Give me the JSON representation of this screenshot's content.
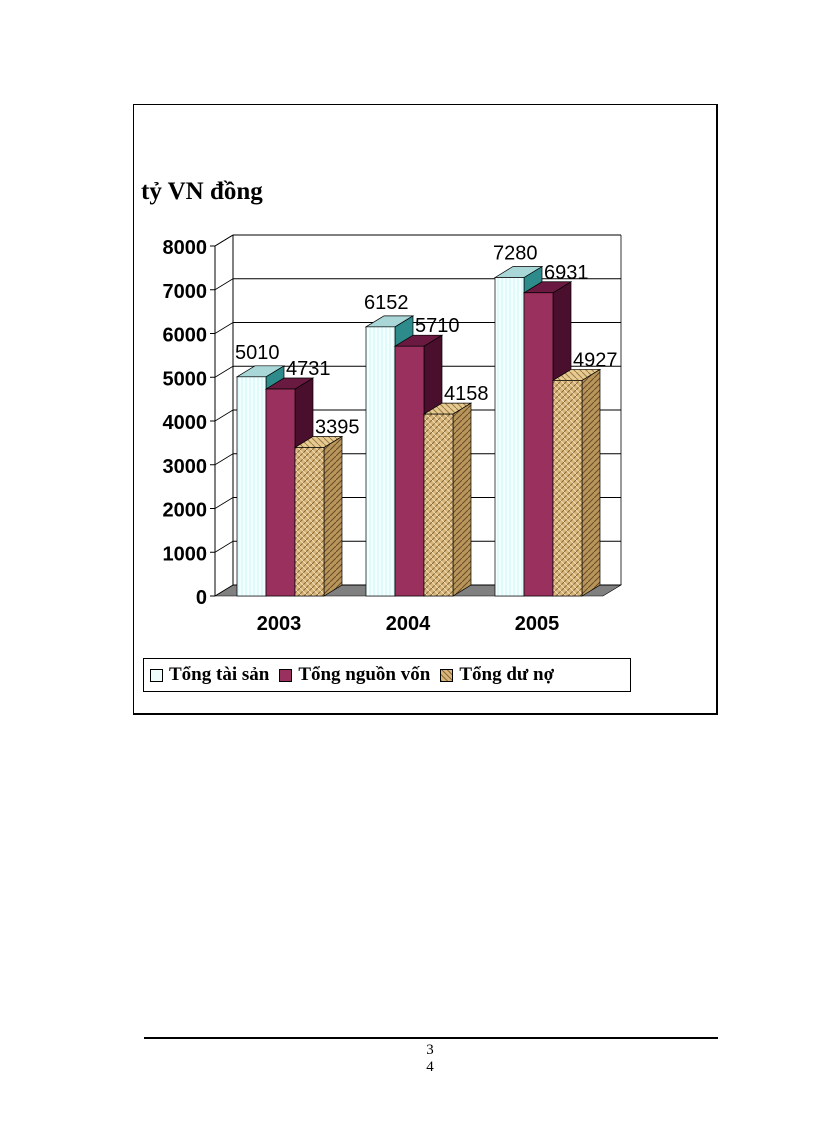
{
  "chart_data": {
    "type": "bar",
    "ylabel": "tỷ VN đồng",
    "categories": [
      "2003",
      "2004",
      "2005"
    ],
    "series": [
      {
        "name": "Tổng tài sản",
        "values": [
          5010,
          6152,
          7280
        ],
        "color": "#eefcfc"
      },
      {
        "name": "Tổng nguồn vốn",
        "values": [
          4731,
          5710,
          6931
        ],
        "color": "#99305e"
      },
      {
        "name": "Tổng dư nợ",
        "values": [
          3395,
          4158,
          4927
        ],
        "color": "#d8b67a"
      }
    ],
    "ylim": [
      0,
      8000
    ],
    "yticks": [
      "0",
      "1000",
      "2000",
      "3000",
      "4000",
      "5000",
      "6000",
      "7000",
      "8000"
    ],
    "grid": true,
    "style": "3d-clustered-column",
    "legend_position": "bottom"
  },
  "page": {
    "number_line1": "3",
    "number_line2": "4"
  }
}
